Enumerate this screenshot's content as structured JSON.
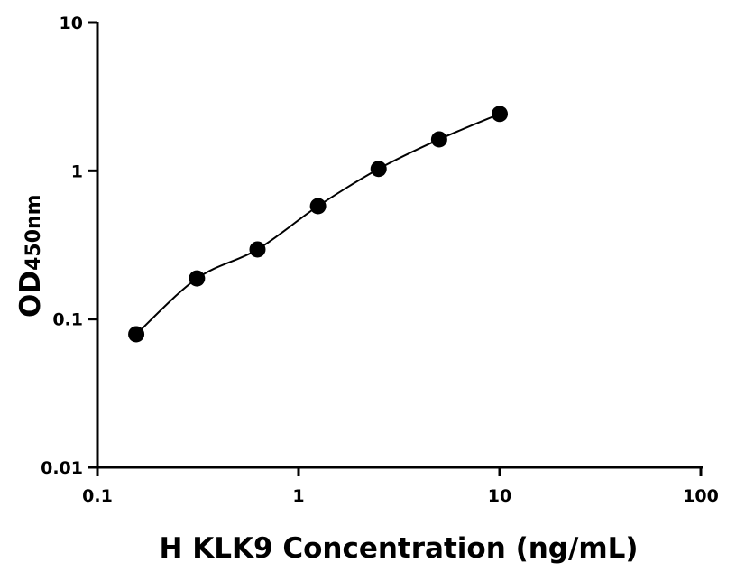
{
  "chart_data": {
    "type": "scatter",
    "title": "",
    "xlabel": "H KLK9 Concentration (ng/mL)",
    "ylabel_main": "OD",
    "ylabel_sub": "450nm",
    "x_scale": "log",
    "y_scale": "log",
    "xlim": [
      0.1,
      100
    ],
    "ylim": [
      0.01,
      10
    ],
    "x_ticks": [
      {
        "value": 0.1,
        "label": "0.1"
      },
      {
        "value": 1,
        "label": "1"
      },
      {
        "value": 10,
        "label": "10"
      },
      {
        "value": 100,
        "label": "100"
      }
    ],
    "y_ticks": [
      {
        "value": 0.01,
        "label": "0.01"
      },
      {
        "value": 0.1,
        "label": "0.1"
      },
      {
        "value": 1,
        "label": "1"
      },
      {
        "value": 10,
        "label": "10"
      }
    ],
    "grid": false,
    "fit_curve": true,
    "marker_color": "#000000",
    "series": [
      {
        "x": [
          0.156,
          0.3125,
          0.625,
          1.25,
          2.5,
          5,
          10
        ],
        "y": [
          0.079,
          0.188,
          0.295,
          0.578,
          1.03,
          1.63,
          2.42
        ]
      }
    ]
  }
}
